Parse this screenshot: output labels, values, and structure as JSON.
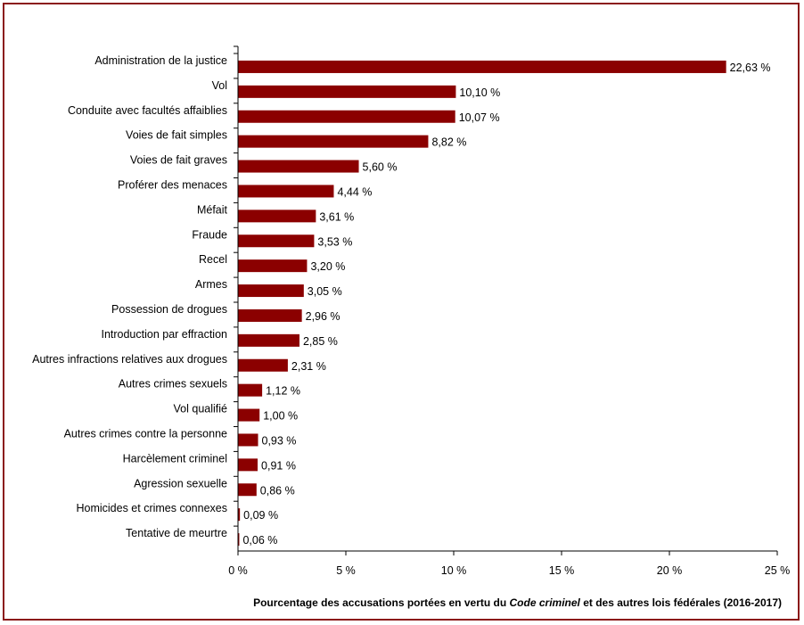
{
  "chart_data": {
    "type": "bar",
    "orientation": "horizontal",
    "categories": [
      "Administration de la justice",
      "Vol",
      "Conduite avec facultés affaiblies",
      "Voies de fait simples",
      "Voies de fait graves",
      "Proférer des menaces",
      "Méfait",
      "Fraude",
      "Recel",
      "Armes",
      "Possession de drogues",
      "Introduction par effraction",
      "Autres infractions relatives aux drogues",
      "Autres crimes sexuels",
      "Vol qualifié",
      "Autres crimes contre la personne",
      "Harcèlement criminel",
      "Agression sexuelle",
      "Homicides et crimes connexes",
      "Tentative de meurtre"
    ],
    "values": [
      22.63,
      10.1,
      10.07,
      8.82,
      5.6,
      4.44,
      3.61,
      3.53,
      3.2,
      3.05,
      2.96,
      2.85,
      2.31,
      1.12,
      1.0,
      0.93,
      0.91,
      0.86,
      0.09,
      0.06
    ],
    "value_labels": [
      "22,63 %",
      "10,10 %",
      "10,07 %",
      "8,82 %",
      "5,60 %",
      "4,44 %",
      "3,61 %",
      "3,53 %",
      "3,20 %",
      "3,05 %",
      "2,96 %",
      "2,85 %",
      "2,31 %",
      "1,12 %",
      "1,00 %",
      "0,93 %",
      "0,91 %",
      "0,86 %",
      "0,09 %",
      "0,06 %"
    ],
    "xlim": [
      0,
      25
    ],
    "xticks": [
      0,
      5,
      10,
      15,
      20,
      25
    ],
    "xtick_labels": [
      "0 %",
      "5 %",
      "10 %",
      "15 %",
      "20 %",
      "25 %"
    ],
    "xlabel_parts": {
      "before": "Pourcentage des accusations portées en vertu du ",
      "italic": "Code criminel",
      "after": " et des autres lois fédérales (2016-2017)"
    },
    "grid": false,
    "bar_color": "#8b0000",
    "border_color": "#8b1a1a"
  }
}
